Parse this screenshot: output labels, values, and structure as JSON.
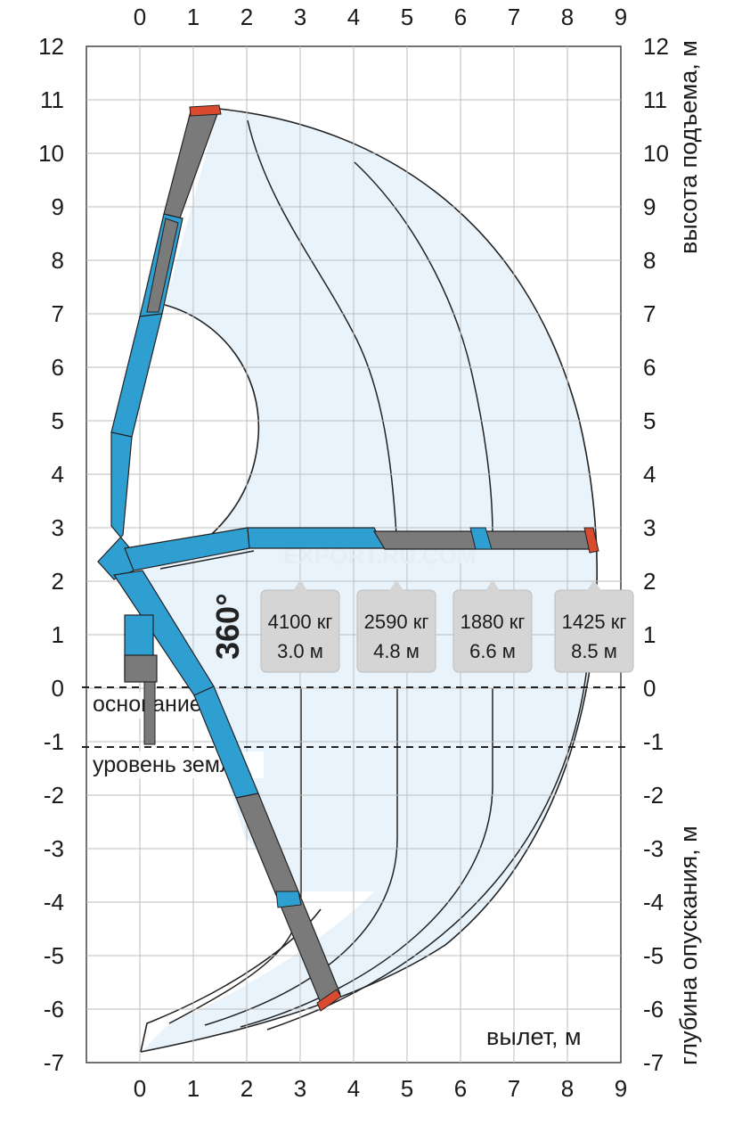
{
  "chart_data": {
    "type": "diagram",
    "x_ticks": [
      "0",
      "1",
      "2",
      "3",
      "4",
      "5",
      "6",
      "7",
      "8",
      "9"
    ],
    "y_ticks": [
      "12",
      "11",
      "10",
      "9",
      "8",
      "7",
      "6",
      "5",
      "4",
      "3",
      "2",
      "1",
      "0",
      "-1",
      "-2",
      "-3",
      "-4",
      "-5",
      "-6",
      "-7"
    ],
    "xlim": [
      -1,
      9
    ],
    "ylim": [
      -7,
      12
    ],
    "right_label_top": "высота подъема, м",
    "right_label_bottom": "глубина опускания, м",
    "x_label": "вылет, м",
    "base_label": "основание",
    "ground_label": "уровень земли",
    "base_level": 0,
    "ground_level": -1.1,
    "rotation": "360°",
    "watermark": "EXPORT.RU.COM",
    "loads": [
      {
        "load": "4100 кг",
        "reach": "3.0 м",
        "x": 3.0
      },
      {
        "load": "2590 кг",
        "reach": "4.8 м",
        "x": 4.8
      },
      {
        "load": "1880 кг",
        "reach": "6.6 м",
        "x": 6.6
      },
      {
        "load": "1425 кг",
        "reach": "8.5 м",
        "x": 8.5
      }
    ]
  },
  "colors": {
    "area": "#e8f3fb",
    "blue": "#2f9fd1",
    "gray": "#7a7a7a",
    "red": "#d94a2e",
    "label_bg": "#d5d5d5",
    "grid": "#bdbdbd"
  }
}
